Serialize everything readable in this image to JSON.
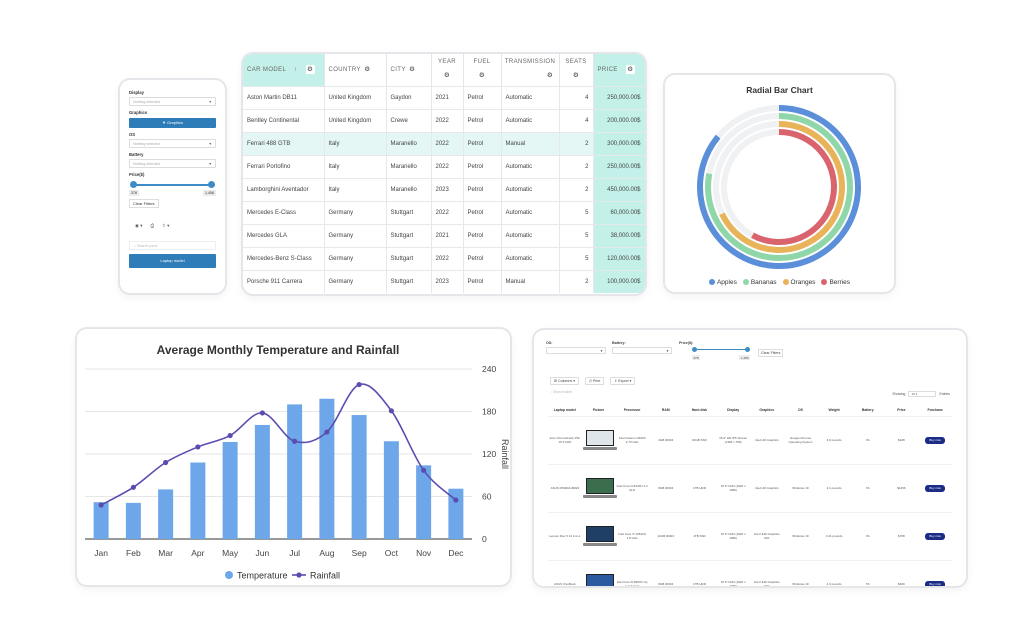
{
  "mobile": {
    "display_label": "Display",
    "display_placeholder": "Nothing selected",
    "graphics_label": "Graphics",
    "graphics_button": "▼ Graphics",
    "os_label": "OS",
    "os_placeholder": "Nothing selected",
    "battery_label": "Battery",
    "battery_placeholder": "Nothing selected",
    "price_label": "Price($)",
    "price_min": "378",
    "price_max": "1,456",
    "clear_filters": "Clear Filters",
    "search_placeholder": "Search parts",
    "bottom_button": "Laptop model"
  },
  "cars": {
    "headers": {
      "model": "CAR MODEL",
      "country": "COUNTRY",
      "city": "CITY",
      "year": "YEAR",
      "fuel": "FUEL",
      "transmission": "TRANSMISSION",
      "seats": "SEATS",
      "price": "PRICE"
    },
    "sort_icon": "↑",
    "rows": [
      [
        "Aston Martin DB11",
        "United Kingdom",
        "Gaydon",
        "2021",
        "Petrol",
        "Automatic",
        "4",
        "250,000.00$"
      ],
      [
        "Bentley Continental",
        "United Kingdom",
        "Crewe",
        "2022",
        "Petrol",
        "Automatic",
        "4",
        "200,000.00$"
      ],
      [
        "Ferrari 488 GTB",
        "Italy",
        "Maranello",
        "2022",
        "Petrol",
        "Manual",
        "2",
        "300,000.00$"
      ],
      [
        "Ferrari Portofino",
        "Italy",
        "Maranello",
        "2022",
        "Petrol",
        "Automatic",
        "2",
        "250,000.00$"
      ],
      [
        "Lamborghini Aventador",
        "Italy",
        "Maranello",
        "2023",
        "Petrol",
        "Automatic",
        "2",
        "450,000.00$"
      ],
      [
        "Mercedes E-Class",
        "Germany",
        "Stuttgart",
        "2022",
        "Petrol",
        "Automatic",
        "5",
        "60,000.00$"
      ],
      [
        "Mercedes GLA",
        "Germany",
        "Stuttgart",
        "2021",
        "Petrol",
        "Automatic",
        "5",
        "38,000.00$"
      ],
      [
        "Mercedes-Benz S-Class",
        "Germany",
        "Stuttgart",
        "2022",
        "Petrol",
        "Automatic",
        "5",
        "120,000.00$"
      ],
      [
        "Porsche 911 Carrera",
        "Germany",
        "Stuttgart",
        "2023",
        "Petrol",
        "Manual",
        "2",
        "100,000.00$"
      ]
    ]
  },
  "radial": {
    "title": "Radial Bar Chart",
    "series": [
      {
        "name": "Apples",
        "value": 0.86,
        "color": "#5b8fd9"
      },
      {
        "name": "Bananas",
        "value": 0.78,
        "color": "#8fd6a8"
      },
      {
        "name": "Oranges",
        "value": 0.68,
        "color": "#e9b35a"
      },
      {
        "name": "Berries",
        "value": 0.58,
        "color": "#d9646d"
      }
    ]
  },
  "chart_data": {
    "type": "bar",
    "title": "Average Monthly Temperature and Rainfall",
    "categories": [
      "Jan",
      "Feb",
      "Mar",
      "Apr",
      "May",
      "Jun",
      "Jul",
      "Aug",
      "Sep",
      "Oct",
      "Nov",
      "Dec"
    ],
    "series": [
      {
        "name": "Temperature",
        "type": "bar",
        "color": "#6ea6ea",
        "values": [
          52,
          51,
          70,
          108,
          137,
          161,
          190,
          198,
          175,
          138,
          104,
          71
        ]
      },
      {
        "name": "Rainfall",
        "type": "line",
        "color": "#5a4db0",
        "values": [
          48,
          73,
          108,
          130,
          146,
          178,
          138,
          151,
          218,
          181,
          97,
          55
        ]
      }
    ],
    "ylabel_right": "Rainfall",
    "yticks": [
      "0",
      "60",
      "120",
      "180",
      "240"
    ],
    "ylim": [
      0,
      240
    ],
    "legend_position": "bottom",
    "grid": true
  },
  "laptops": {
    "filters": {
      "os_label": "OS:",
      "battery_label": "Battery:",
      "price_label": "Price($):",
      "price_min": "378",
      "price_max": "1,456",
      "clear": "Clear Filters"
    },
    "tools": {
      "columns": "⊞ Columns ▾",
      "print": "⎙ Print",
      "export": "⇪ Export ▾"
    },
    "search_placeholder": "Search table",
    "showing_label": "Showing",
    "showing_value": "10",
    "entries_label": "Entries",
    "headers": [
      "Laptop model",
      "Picture",
      "Processor",
      "RAM",
      "Hard disk",
      "Display",
      "Graphics",
      "OS",
      "Weight",
      "Battery",
      "Price",
      "Purchase"
    ],
    "buy_label": "Buy now",
    "rows": [
      {
        "model": "Acer Chromebook 15in 15.6 FHD",
        "processor": "Intel Celeron N4020 2.70 GHz",
        "ram": "4GB DDR4",
        "disk": "64GB SSD",
        "display": "15.6\" HD IPS Screen (1366 x 768)",
        "graphics": "Intel HD Graphics",
        "os": "Google Chrome Operating System",
        "weight": "3.6 pounds",
        "battery": "9h",
        "price": "$228",
        "screen": "#dfe6e9"
      },
      {
        "model": "ASUS F590DA-BR23",
        "processor": "Intel Core i3-8130U 2.2 GHz",
        "ram": "8GB DDR4",
        "disk": "1TB HDD",
        "display": "15.6\" FHD (1920 x 1080)",
        "graphics": "Intel HD Graphics",
        "os": "Windows 10",
        "weight": "3.1 pounds",
        "battery": "6h",
        "price": "$1456",
        "screen": "#3a6e4c"
      },
      {
        "model": "Lenovo Flex 5 14 2-in-1",
        "processor": "Intel Core i7-10510U 1.8 GHz",
        "ram": "12GB DDR4",
        "disk": "1TB SSD",
        "display": "15.6\" FHD (1920 x 1080)",
        "graphics": "Intel UHD Graphics 620",
        "os": "Windows 10",
        "weight": "4.41 pounds",
        "battery": "9h",
        "price": "$708",
        "screen": "#1f3f66"
      },
      {
        "model": "ASUS VivoBook",
        "processor": "Intel Core i5-8250U Up to 3.4 GHz",
        "ram": "8GB DDR4",
        "disk": "1TB HDD",
        "display": "15.6\" FHD (1920 x 1080)",
        "graphics": "Intel UHD Graphics 620",
        "os": "Windows 10",
        "weight": "4.3 pounds",
        "battery": "5h",
        "price": "$469",
        "screen": "#2c5aa0"
      }
    ]
  }
}
